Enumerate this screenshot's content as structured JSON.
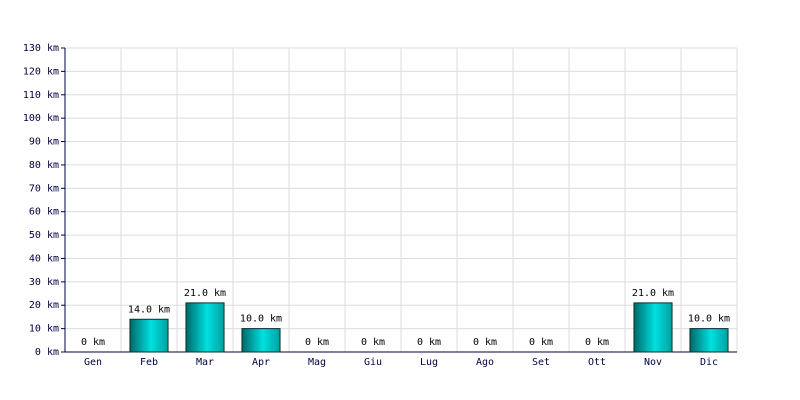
{
  "chart_data": {
    "type": "bar",
    "categories": [
      "Gen",
      "Feb",
      "Mar",
      "Apr",
      "Mag",
      "Giu",
      "Lug",
      "Ago",
      "Set",
      "Ott",
      "Nov",
      "Dic"
    ],
    "values": [
      0,
      14,
      21,
      10,
      0,
      0,
      0,
      0,
      0,
      0,
      21,
      10
    ],
    "value_labels": [
      "0 km",
      "14.0 km",
      "21.0 km",
      "10.0 km",
      "0 km",
      "0 km",
      "0 km",
      "0 km",
      "0 km",
      "0 km",
      "21.0 km",
      "10.0 km"
    ],
    "color": "#00e0e0",
    "ylim": [
      0,
      130
    ],
    "yticks": [
      {
        "value": 0,
        "label": "0 km"
      },
      {
        "value": 10,
        "label": "10 km"
      },
      {
        "value": 20,
        "label": "20 km"
      },
      {
        "value": 30,
        "label": "30 km"
      },
      {
        "value": 40,
        "label": "40 km"
      },
      {
        "value": 50,
        "label": "50 km"
      },
      {
        "value": 60,
        "label": "60 km"
      },
      {
        "value": 70,
        "label": "70 km"
      },
      {
        "value": 80,
        "label": "80 km"
      },
      {
        "value": 90,
        "label": "90 km"
      },
      {
        "value": 100,
        "label": "100 km"
      },
      {
        "value": 110,
        "label": "110 km"
      },
      {
        "value": 120,
        "label": "120 km"
      },
      {
        "value": 130,
        "label": "130 km"
      }
    ],
    "grid": true
  }
}
